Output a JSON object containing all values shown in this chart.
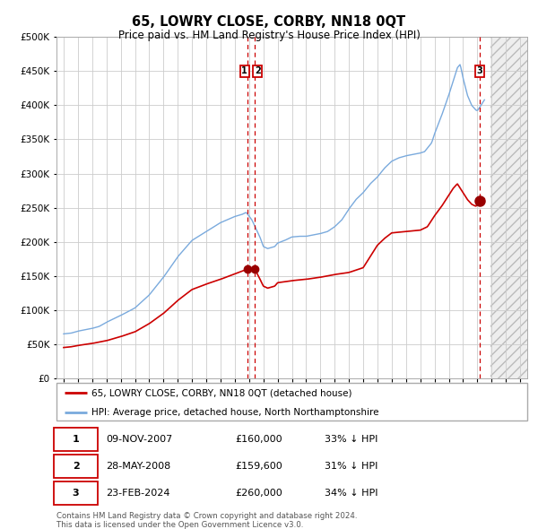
{
  "title": "65, LOWRY CLOSE, CORBY, NN18 0QT",
  "subtitle": "Price paid vs. HM Land Registry's House Price Index (HPI)",
  "legend_line1": "65, LOWRY CLOSE, CORBY, NN18 0QT (detached house)",
  "legend_line2": "HPI: Average price, detached house, North Northamptonshire",
  "footer_line1": "Contains HM Land Registry data © Crown copyright and database right 2024.",
  "footer_line2": "This data is licensed under the Open Government Licence v3.0.",
  "table": [
    {
      "num": "1",
      "date": "09-NOV-2007",
      "price": "£160,000",
      "hpi": "33% ↓ HPI"
    },
    {
      "num": "2",
      "date": "28-MAY-2008",
      "price": "£159,600",
      "hpi": "31% ↓ HPI"
    },
    {
      "num": "3",
      "date": "23-FEB-2024",
      "price": "£260,000",
      "hpi": "34% ↓ HPI"
    }
  ],
  "red_line_color": "#cc0000",
  "blue_line_color": "#7aaadd",
  "vline_color": "#cc0000",
  "marker_color": "#990000",
  "box_color": "#cc0000",
  "grid_color": "#cccccc",
  "background_color": "#ffffff",
  "ylim": [
    0,
    500000
  ],
  "yticks": [
    0,
    50000,
    100000,
    150000,
    200000,
    250000,
    300000,
    350000,
    400000,
    450000,
    500000
  ],
  "xlim_start": 1994.5,
  "xlim_end": 2027.5,
  "transaction1_x": 2007.86,
  "transaction2_x": 2008.41,
  "transaction3_x": 2024.15,
  "transaction1_y": 160000,
  "transaction2_y": 159600,
  "transaction3_y": 260000,
  "future_start": 2024.9
}
